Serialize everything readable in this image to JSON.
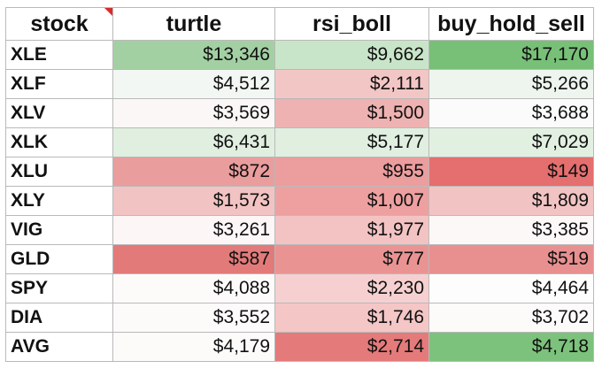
{
  "table": {
    "headers": [
      "stock",
      "turtle",
      "rsi_boll",
      "buy_hold_sell"
    ],
    "rows": [
      {
        "stock": "XLE",
        "cells": [
          {
            "text": "$13,346",
            "color": "#a3d0a3"
          },
          {
            "text": "$9,662",
            "color": "#c9e5c9"
          },
          {
            "text": "$17,170",
            "color": "#78c078"
          }
        ]
      },
      {
        "stock": "XLF",
        "cells": [
          {
            "text": "$4,512",
            "color": "#f3f7f3"
          },
          {
            "text": "$2,111",
            "color": "#f3c6c6"
          },
          {
            "text": "$5,266",
            "color": "#eef5ee"
          }
        ]
      },
      {
        "stock": "XLV",
        "cells": [
          {
            "text": "$3,569",
            "color": "#fbf7f7"
          },
          {
            "text": "$1,500",
            "color": "#efb2b2"
          },
          {
            "text": "$3,688",
            "color": "#fcfbfb"
          }
        ]
      },
      {
        "stock": "XLK",
        "cells": [
          {
            "text": "$6,431",
            "color": "#e0efe0"
          },
          {
            "text": "$5,177",
            "color": "#e0efe0"
          },
          {
            "text": "$7,029",
            "color": "#e2f0e2"
          }
        ]
      },
      {
        "stock": "XLU",
        "cells": [
          {
            "text": "$872",
            "color": "#ea9d9d"
          },
          {
            "text": "$955",
            "color": "#ec9d9d"
          },
          {
            "text": "$149",
            "color": "#e56e6e"
          }
        ]
      },
      {
        "stock": "XLY",
        "cells": [
          {
            "text": "$1,573",
            "color": "#f2c3c3"
          },
          {
            "text": "$1,007",
            "color": "#eea0a0"
          },
          {
            "text": "$1,809",
            "color": "#f2c3c3"
          }
        ]
      },
      {
        "stock": "VIG",
        "cells": [
          {
            "text": "$3,261",
            "color": "#fdf6f6"
          },
          {
            "text": "$1,977",
            "color": "#f3c3c3"
          },
          {
            "text": "$3,385",
            "color": "#fdf8f8"
          }
        ]
      },
      {
        "stock": "GLD",
        "cells": [
          {
            "text": "$587",
            "color": "#e37a7a"
          },
          {
            "text": "$777",
            "color": "#ea9393"
          },
          {
            "text": "$519",
            "color": "#e89090"
          }
        ]
      },
      {
        "stock": "SPY",
        "cells": [
          {
            "text": "$4,088",
            "color": "#fdfafa"
          },
          {
            "text": "$2,230",
            "color": "#f6d0d0"
          },
          {
            "text": "$4,464",
            "color": "#fdfdfd"
          }
        ]
      },
      {
        "stock": "DIA",
        "cells": [
          {
            "text": "$3,552",
            "color": "#fdfafa"
          },
          {
            "text": "$1,746",
            "color": "#f4c6c6"
          },
          {
            "text": "$3,702",
            "color": "#fdfafa"
          }
        ]
      },
      {
        "stock": "AVG",
        "cells": [
          {
            "text": "$4,179",
            "color": "#fdfafa"
          },
          {
            "text": "$2,714",
            "color": "#e57a7a"
          },
          {
            "text": "$4,718",
            "color": "#7cc27c"
          }
        ]
      }
    ]
  },
  "colors": {
    "grid_border": "#b9b9b9",
    "comment_marker": "#d92b2b"
  }
}
